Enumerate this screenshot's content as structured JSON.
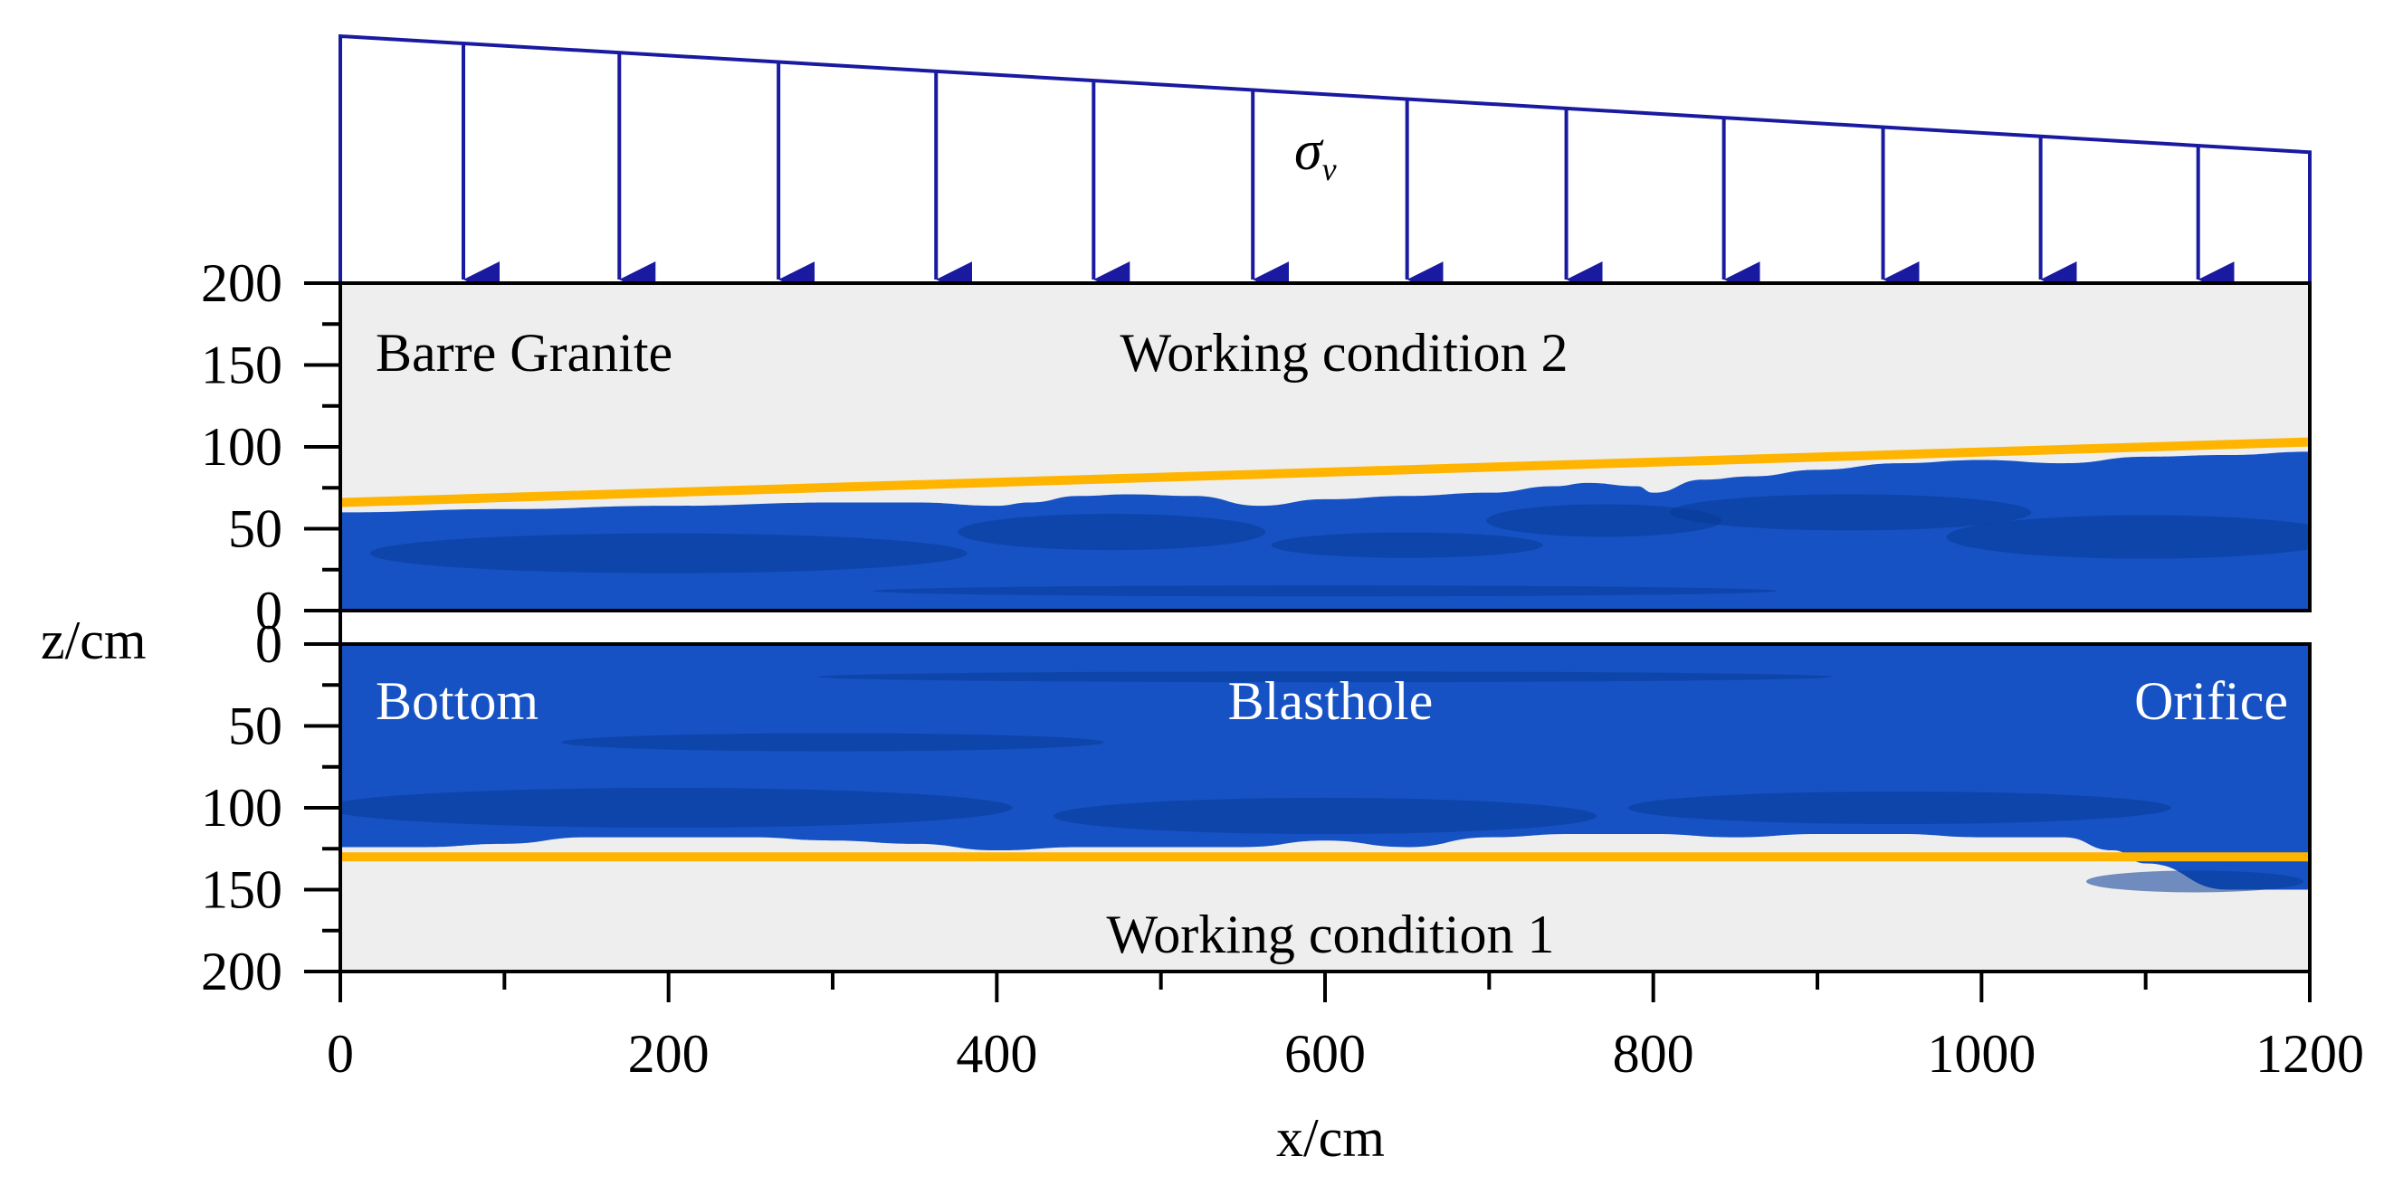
{
  "chart_data": {
    "type": "area",
    "xlabel": "x/cm",
    "ylabel": "z/cm",
    "xlim": [
      0,
      1200
    ],
    "x_ticks": [
      "0",
      "200",
      "400",
      "600",
      "800",
      "1000",
      "1200"
    ],
    "top_panel": {
      "ylim": [
        0,
        200
      ],
      "y_ticks": [
        "0",
        "50",
        "100",
        "150",
        "200"
      ],
      "y_direction": "up",
      "labels": {
        "material": "Barre Granite",
        "condition": "Working condition 2"
      },
      "threshold_line": {
        "x": [
          0,
          1200
        ],
        "z": [
          66,
          103
        ]
      },
      "damage_envelope": {
        "x": [
          0,
          100,
          200,
          300,
          350,
          400,
          420,
          450,
          480,
          520,
          560,
          600,
          650,
          700,
          740,
          760,
          790,
          800,
          830,
          860,
          900,
          950,
          1000,
          1050,
          1100,
          1150,
          1200
        ],
        "z": [
          60,
          62,
          64,
          66,
          66,
          64,
          66,
          70,
          71,
          70,
          64,
          68,
          70,
          72,
          76,
          78,
          76,
          72,
          80,
          82,
          86,
          90,
          92,
          90,
          94,
          95,
          97
        ]
      }
    },
    "bottom_panel": {
      "ylim": [
        0,
        200
      ],
      "y_ticks": [
        "0",
        "50",
        "100",
        "150",
        "200"
      ],
      "y_direction": "down",
      "labels": {
        "left": "Bottom",
        "center": "Blasthole",
        "right": "Orifice",
        "condition": "Working condition 1"
      },
      "threshold_line": {
        "x": [
          0,
          1200
        ],
        "z": [
          130,
          130
        ]
      },
      "damage_envelope": {
        "x": [
          0,
          50,
          100,
          150,
          200,
          250,
          300,
          350,
          400,
          450,
          500,
          550,
          600,
          650,
          700,
          750,
          800,
          850,
          900,
          950,
          1000,
          1050,
          1080,
          1100,
          1150,
          1200
        ],
        "z": [
          124,
          124,
          122,
          118,
          118,
          118,
          120,
          122,
          126,
          124,
          124,
          124,
          120,
          124,
          118,
          116,
          116,
          118,
          116,
          116,
          118,
          118,
          126,
          134,
          150,
          150
        ]
      }
    },
    "load": {
      "label": "σ",
      "label_subscript": "v",
      "arrow_x": [
        75,
        170,
        267,
        363,
        459,
        556,
        650,
        747,
        843,
        940,
        1036,
        1132
      ],
      "relative_magnitude": {
        "x": [
          0,
          1200
        ],
        "value": [
          1.0,
          0.53
        ]
      }
    },
    "colors": {
      "damage": "#1652c4",
      "damage_dark": "#0a3a96",
      "threshold": "#ffb400",
      "load": "#1a1aa0",
      "panel_bg": "#eeeeee"
    }
  }
}
